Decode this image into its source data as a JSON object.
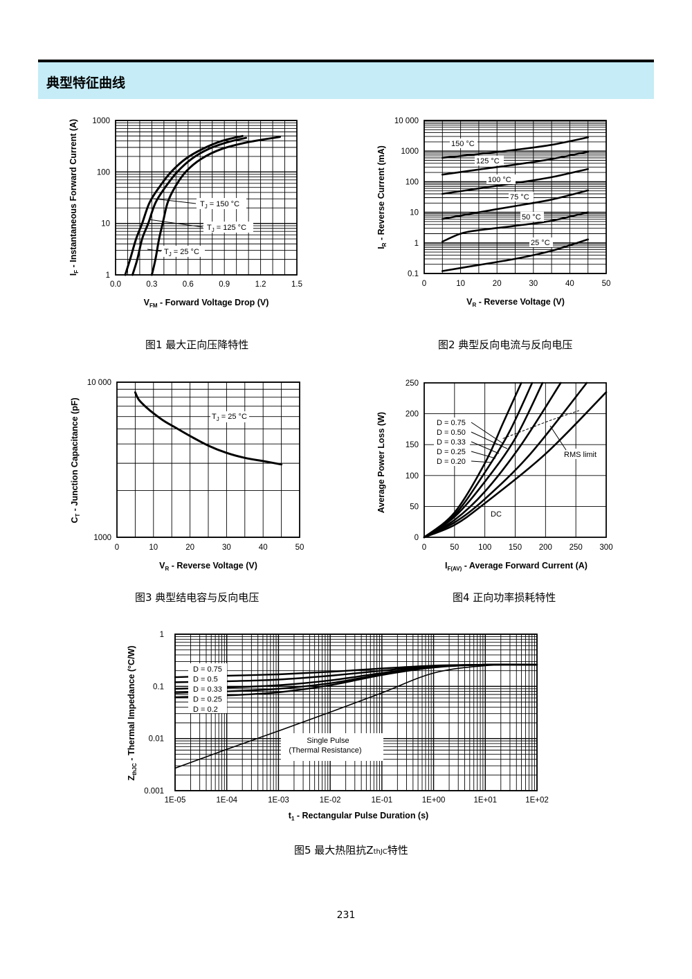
{
  "section": {
    "title": "典型特征曲线"
  },
  "captions": {
    "fig1": "图1  最大正向压降特性",
    "fig2": "图2  典型反向电流与反向电压",
    "fig3": "图3  典型结电容与反向电压",
    "fig4": "图4  正向功率损耗特性",
    "fig5_prefix": "图5  最大热阻抗Z",
    "fig5_sub": "thJC",
    "fig5_suffix": "特性"
  },
  "page_number": "231",
  "chart_data": [
    {
      "id": "fig1",
      "type": "line",
      "xlabel": "V",
      "xlabel_sub": "FM",
      "xlabel_rest": " - Forward Voltage Drop (V)",
      "ylabel": "I",
      "ylabel_sub": "F",
      "ylabel_rest": " - Instantaneous Forward Current (A)",
      "xlim": [
        0,
        1.5
      ],
      "ylim": [
        1,
        1000
      ],
      "yscale": "log",
      "x_ticks": [
        "0.0",
        "0.3",
        "0.6",
        "0.9",
        "1.2",
        "1.5"
      ],
      "y_ticks": [
        "1",
        "10",
        "100",
        "1000"
      ],
      "grid": true,
      "series": [
        {
          "name": "T_J = 150 °C",
          "label_text": "T",
          "label_sub": "J",
          "label_rest": " = 150 °C",
          "x": [
            0.08,
            0.12,
            0.17,
            0.22,
            0.28,
            0.36,
            0.46,
            0.58,
            0.72,
            0.88,
            1.05
          ],
          "y": [
            1,
            2,
            5,
            10,
            25,
            50,
            100,
            180,
            280,
            400,
            500
          ]
        },
        {
          "name": "T_J = 125 °C",
          "label_text": "T",
          "label_sub": "J",
          "label_rest": " = 125 °C",
          "x": [
            0.14,
            0.18,
            0.22,
            0.27,
            0.33,
            0.41,
            0.51,
            0.63,
            0.77,
            0.93,
            1.08
          ],
          "y": [
            1,
            2,
            5,
            10,
            25,
            50,
            100,
            180,
            280,
            380,
            460
          ]
        },
        {
          "name": "T_J = 25 °C",
          "label_text": "T",
          "label_sub": "J",
          "label_rest": " = 25 °C",
          "x": [
            0.3,
            0.33,
            0.36,
            0.39,
            0.43,
            0.49,
            0.58,
            0.71,
            0.88,
            1.1,
            1.36
          ],
          "y": [
            1,
            2,
            5,
            10,
            25,
            50,
            100,
            180,
            280,
            380,
            480
          ]
        }
      ]
    },
    {
      "id": "fig2",
      "type": "line",
      "xlabel": "V",
      "xlabel_sub": "R",
      "xlabel_rest": " - Reverse Voltage (V)",
      "ylabel": "I",
      "ylabel_sub": "R",
      "ylabel_rest": " - Reverse Current (mA)",
      "xlim": [
        0,
        50
      ],
      "ylim": [
        0.1,
        10000
      ],
      "yscale": "log",
      "x_ticks": [
        "0",
        "10",
        "20",
        "30",
        "40",
        "50"
      ],
      "y_ticks": [
        "0.1",
        "1",
        "10",
        "100",
        "1000",
        "10 000"
      ],
      "grid": true,
      "series": [
        {
          "name": "150 °C",
          "x": [
            5,
            15,
            25,
            35,
            45
          ],
          "y": [
            600,
            800,
            1100,
            1600,
            2800
          ]
        },
        {
          "name": "125 °C",
          "x": [
            5,
            15,
            25,
            35,
            45
          ],
          "y": [
            170,
            250,
            360,
            550,
            950
          ]
        },
        {
          "name": "100 °C",
          "x": [
            5,
            15,
            25,
            35,
            45
          ],
          "y": [
            40,
            60,
            90,
            140,
            260
          ]
        },
        {
          "name": "75 °C",
          "x": [
            5,
            15,
            25,
            35,
            45
          ],
          "y": [
            6,
            10,
            16,
            26,
            52
          ]
        },
        {
          "name": "50 °C",
          "x": [
            5,
            10,
            15,
            25,
            35,
            45
          ],
          "y": [
            1.1,
            2,
            2.6,
            3.6,
            5.3,
            10
          ]
        },
        {
          "name": "25 °C",
          "x": [
            5,
            15,
            25,
            35,
            45
          ],
          "y": [
            0.12,
            0.19,
            0.3,
            0.55,
            1.3
          ]
        }
      ]
    },
    {
      "id": "fig3",
      "type": "line",
      "xlabel": "V",
      "xlabel_sub": "R",
      "xlabel_rest": " - Reverse Voltage (V)",
      "ylabel": "C",
      "ylabel_sub": "T",
      "ylabel_rest": " - Junction Capacitance (pF)",
      "xlim": [
        0,
        50
      ],
      "ylim": [
        1000,
        10000
      ],
      "yscale": "log",
      "x_ticks": [
        "0",
        "10",
        "20",
        "30",
        "40",
        "50"
      ],
      "y_ticks": [
        "1000",
        "10 000"
      ],
      "grid": true,
      "series": [
        {
          "name": "T_J = 25 °C",
          "label_text": "T",
          "label_sub": "J",
          "label_rest": " = 25 °C",
          "x": [
            5,
            6,
            8,
            10,
            13,
            16,
            20,
            25,
            30,
            35,
            40,
            45
          ],
          "y": [
            8600,
            7700,
            6900,
            6300,
            5600,
            5100,
            4500,
            3900,
            3500,
            3250,
            3100,
            2950
          ]
        }
      ]
    },
    {
      "id": "fig4",
      "type": "line",
      "xlabel": "I",
      "xlabel_sub": "F(AV)",
      "xlabel_rest": " - Average Forward Current (A)",
      "ylabel": "Average Power Loss (W)",
      "xlim": [
        0,
        300
      ],
      "ylim": [
        0,
        250
      ],
      "x_ticks": [
        "0",
        "50",
        "100",
        "150",
        "200",
        "250",
        "300"
      ],
      "y_ticks": [
        "0",
        "50",
        "100",
        "150",
        "200",
        "250"
      ],
      "grid": true,
      "legend_labels": [
        "D = 0.75",
        "D = 0.50",
        "D = 0.33",
        "D = 0.25",
        "D = 0.20"
      ],
      "annotations": [
        "RMS limit",
        "DC"
      ],
      "series": [
        {
          "name": "D = 0.20",
          "x": [
            0,
            50,
            100,
            130,
            160
          ],
          "y": [
            0,
            40,
            120,
            185,
            250
          ]
        },
        {
          "name": "D = 0.25",
          "x": [
            0,
            50,
            100,
            140,
            178
          ],
          "y": [
            0,
            36,
            105,
            170,
            250
          ]
        },
        {
          "name": "D = 0.33",
          "x": [
            0,
            50,
            100,
            150,
            195
          ],
          "y": [
            0,
            33,
            90,
            160,
            250
          ]
        },
        {
          "name": "D = 0.50",
          "x": [
            0,
            50,
            100,
            160,
            225
          ],
          "y": [
            0,
            28,
            74,
            150,
            250
          ]
        },
        {
          "name": "D = 0.75",
          "x": [
            0,
            50,
            100,
            175,
            268
          ],
          "y": [
            0,
            24,
            62,
            135,
            250
          ]
        },
        {
          "name": "DC",
          "x": [
            0,
            50,
            100,
            200,
            300
          ],
          "y": [
            0,
            20,
            55,
            135,
            235
          ]
        },
        {
          "name": "RMS limit",
          "x": [
            130,
            170,
            210,
            255
          ],
          "y": [
            160,
            175,
            190,
            205
          ]
        }
      ]
    },
    {
      "id": "fig5",
      "type": "line",
      "xlabel": "t",
      "xlabel_sub": "1",
      "xlabel_rest": " - Rectangular Pulse Duration (s)",
      "ylabel": "Z",
      "ylabel_sub": "thJC",
      "ylabel_rest": " - Thermal Impedance (°C/W)",
      "xlim": [
        1e-05,
        100
      ],
      "ylim": [
        0.001,
        1
      ],
      "xscale": "log",
      "yscale": "log",
      "x_ticks": [
        "1E-05",
        "1E-04",
        "1E-03",
        "1E-02",
        "1E-01",
        "1E+00",
        "1E+01",
        "1E+02"
      ],
      "y_ticks": [
        "0.001",
        "0.01",
        "0.1",
        "1"
      ],
      "grid": true,
      "annotation": [
        "Single Pulse",
        "(Thermal Resistance)"
      ],
      "series": [
        {
          "name": "D = 0.75",
          "x": [
            1e-05,
            0.0001,
            0.001,
            0.01,
            0.1,
            1,
            10,
            100
          ],
          "y": [
            0.15,
            0.16,
            0.17,
            0.19,
            0.22,
            0.25,
            0.26,
            0.26
          ]
        },
        {
          "name": "D = 0.5",
          "x": [
            1e-05,
            0.0001,
            0.001,
            0.01,
            0.1,
            1,
            10,
            100
          ],
          "y": [
            0.12,
            0.125,
            0.135,
            0.16,
            0.2,
            0.245,
            0.26,
            0.26
          ]
        },
        {
          "name": "D = 0.33",
          "x": [
            1e-05,
            0.0001,
            0.001,
            0.01,
            0.1,
            1,
            10,
            100
          ],
          "y": [
            0.09,
            0.095,
            0.105,
            0.13,
            0.18,
            0.24,
            0.26,
            0.26
          ]
        },
        {
          "name": "D = 0.25",
          "x": [
            1e-05,
            0.0001,
            0.001,
            0.01,
            0.1,
            1,
            10,
            100
          ],
          "y": [
            0.075,
            0.08,
            0.09,
            0.115,
            0.17,
            0.235,
            0.26,
            0.26
          ]
        },
        {
          "name": "D = 0.2",
          "x": [
            1e-05,
            0.0001,
            0.001,
            0.01,
            0.1,
            1,
            10,
            100
          ],
          "y": [
            0.062,
            0.067,
            0.077,
            0.105,
            0.165,
            0.23,
            0.26,
            0.26
          ]
        },
        {
          "name": "Single Pulse",
          "x": [
            1e-05,
            0.0001,
            0.001,
            0.01,
            0.1,
            1,
            10,
            100
          ],
          "y": [
            0.0027,
            0.0062,
            0.014,
            0.032,
            0.075,
            0.18,
            0.25,
            0.26
          ]
        }
      ]
    }
  ]
}
